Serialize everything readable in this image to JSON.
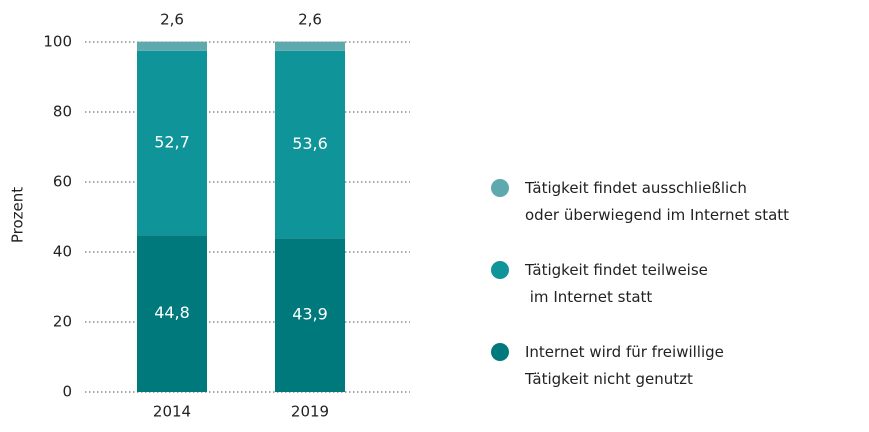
{
  "chart_data": {
    "type": "bar",
    "stacked": true,
    "y_label": "Prozent",
    "categories": [
      "2014",
      "2019"
    ],
    "series": [
      {
        "name": "Internet wird für freiwillige\nTätigkeit nicht genutzt",
        "color": "#00797d",
        "values": [
          44.8,
          43.9
        ],
        "value_labels": [
          "44,8",
          "43,9"
        ]
      },
      {
        "name": "Tätigkeit findet teilweise\n im Internet statt",
        "color": "#0e9499",
        "values": [
          52.7,
          53.6
        ],
        "value_labels": [
          "52,7",
          "53,6"
        ]
      },
      {
        "name": "Tätigkeit findet ausschließlich\noder überwiegend im Internet statt",
        "color": "#5ea9ae",
        "values": [
          2.6,
          2.6
        ],
        "value_labels": [
          "2,6",
          "2,6"
        ]
      }
    ],
    "ylim": [
      0,
      100
    ],
    "yticks": [
      0,
      20,
      40,
      60,
      80,
      100
    ],
    "grid": true,
    "legend": "right"
  }
}
